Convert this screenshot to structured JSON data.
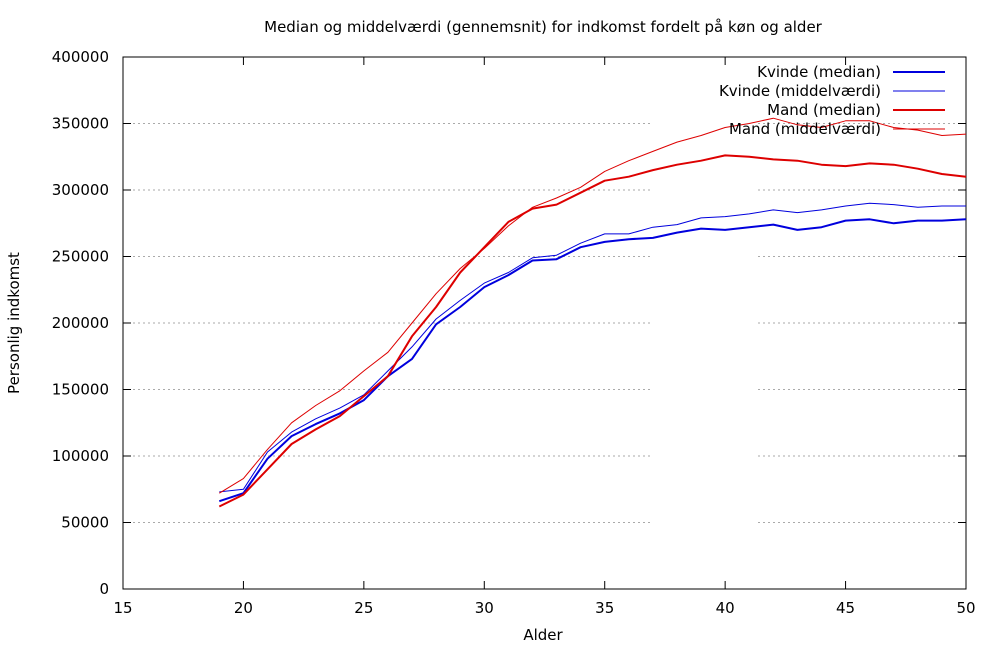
{
  "chart_data": {
    "type": "line",
    "title": "Median og middelværdi (gennemsnit) for indkomst fordelt på køn og alder",
    "xlabel": "Alder",
    "ylabel": "Personlig indkomst",
    "xlim": [
      15,
      50
    ],
    "ylim": [
      0,
      400000
    ],
    "xticks": [
      15,
      20,
      25,
      30,
      35,
      40,
      45,
      50
    ],
    "yticks": [
      0,
      50000,
      100000,
      150000,
      200000,
      250000,
      300000,
      350000,
      400000
    ],
    "grid": "horizontal dotted, left half",
    "legend_position": "top-right",
    "x": [
      19,
      20,
      21,
      22,
      23,
      24,
      25,
      26,
      27,
      28,
      29,
      30,
      31,
      32,
      33,
      34,
      35,
      36,
      37,
      38,
      39,
      40,
      41,
      42,
      43,
      44,
      45,
      46,
      47,
      48,
      49,
      50
    ],
    "series": [
      {
        "name": "Kvinde (median)",
        "color": "#0000dd",
        "width": "thick",
        "values": [
          66000,
          72000,
          98000,
          115000,
          124000,
          132000,
          142000,
          160000,
          173000,
          199000,
          212000,
          227000,
          236000,
          247000,
          248000,
          257000,
          261000,
          263000,
          264000,
          268000,
          271000,
          270000,
          272000,
          274000,
          270000,
          272000,
          277000,
          278000,
          275000,
          277000,
          277000,
          278000
        ]
      },
      {
        "name": "Kvinde (middelværdi)",
        "color": "#0000dd",
        "width": "thin",
        "values": [
          73000,
          75000,
          103000,
          118000,
          128000,
          136000,
          146000,
          164000,
          182000,
          203000,
          217000,
          230000,
          238000,
          249000,
          251000,
          260000,
          267000,
          267000,
          272000,
          274000,
          279000,
          280000,
          282000,
          285000,
          283000,
          285000,
          288000,
          290000,
          289000,
          287000,
          288000,
          288000
        ]
      },
      {
        "name": "Mand (median)",
        "color": "#dd0000",
        "width": "thick",
        "values": [
          62000,
          71000,
          90000,
          109000,
          120000,
          130000,
          145000,
          160000,
          190000,
          212000,
          238000,
          257000,
          276000,
          286000,
          289000,
          298000,
          307000,
          310000,
          315000,
          319000,
          322000,
          326000,
          325000,
          323000,
          322000,
          319000,
          318000,
          320000,
          319000,
          316000,
          312000,
          310000
        ]
      },
      {
        "name": "Mand (middelværdi)",
        "color": "#dd0000",
        "width": "thin",
        "values": [
          72000,
          83000,
          105000,
          125000,
          138000,
          149000,
          164000,
          178000,
          200000,
          222000,
          241000,
          256000,
          273000,
          287000,
          294000,
          302000,
          314000,
          322000,
          329000,
          336000,
          341000,
          347000,
          350000,
          354000,
          349000,
          347000,
          352000,
          352000,
          347000,
          345000,
          341000,
          342000
        ]
      }
    ]
  }
}
